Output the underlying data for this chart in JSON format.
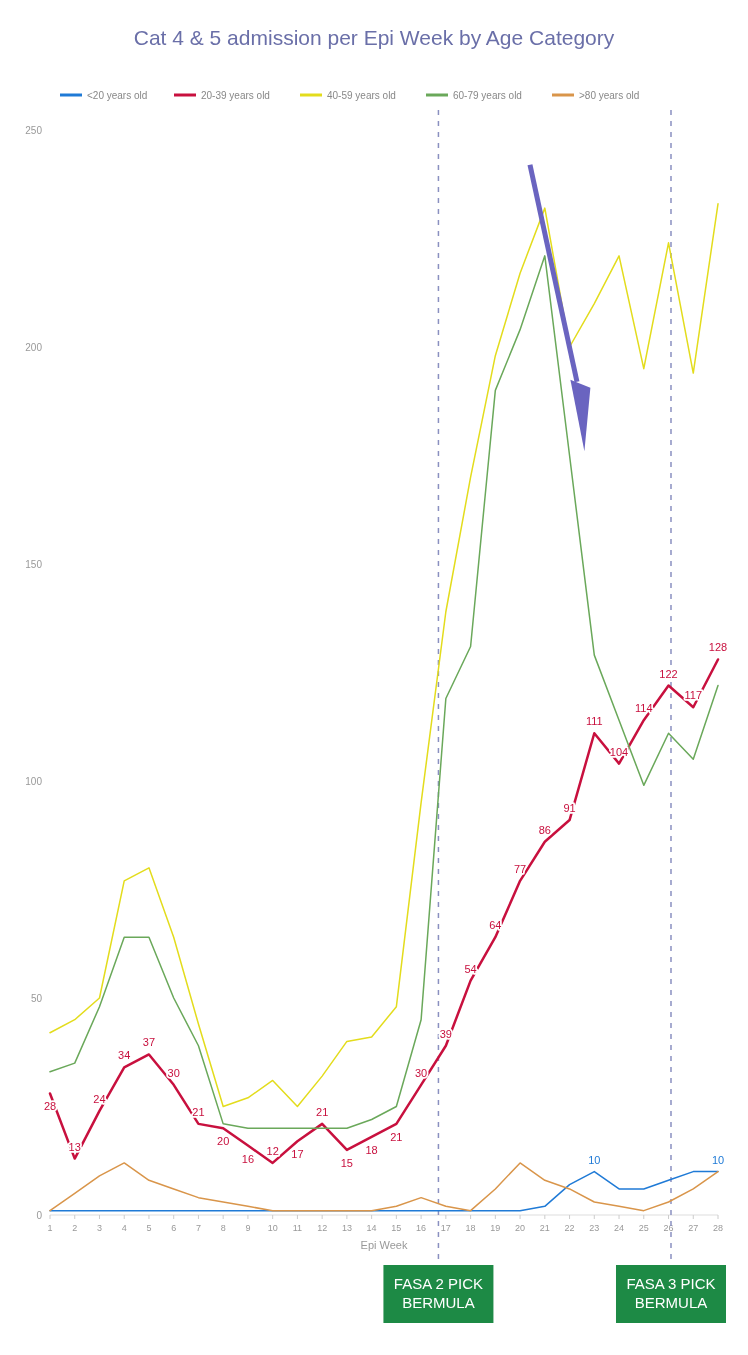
{
  "chart_data": {
    "type": "line",
    "title": "Cat 4 & 5 admission per Epi Week by Age Category",
    "xlabel": "Epi Week",
    "x": [
      1,
      2,
      3,
      4,
      5,
      6,
      7,
      8,
      9,
      10,
      11,
      12,
      13,
      14,
      15,
      16,
      17,
      18,
      19,
      20,
      21,
      22,
      23,
      24,
      25,
      26,
      27,
      28
    ],
    "xlim": [
      1,
      28
    ],
    "xticks": [
      1,
      2,
      3,
      4,
      5,
      6,
      7,
      8,
      9,
      10,
      11,
      12,
      13,
      14,
      15,
      16,
      17,
      18,
      19,
      20,
      21,
      22,
      23,
      24,
      25,
      26,
      27,
      28
    ],
    "ylim": [
      0,
      250
    ],
    "yticks": [
      0,
      50,
      100,
      150,
      200,
      250
    ],
    "legend": "top",
    "series": [
      {
        "name": "<20 years old",
        "color": "#1f7ad6",
        "values": [
          1,
          1,
          1,
          1,
          1,
          1,
          1,
          1,
          1,
          1,
          1,
          1,
          1,
          1,
          1,
          1,
          1,
          1,
          1,
          1,
          2,
          7,
          10,
          6,
          6,
          8,
          10,
          10
        ],
        "value_labels": [
          null,
          null,
          null,
          null,
          null,
          null,
          null,
          null,
          null,
          null,
          null,
          null,
          null,
          null,
          null,
          null,
          null,
          null,
          null,
          null,
          null,
          null,
          "10",
          null,
          null,
          null,
          null,
          "10"
        ]
      },
      {
        "name": "20-39 years old",
        "color": "#c8103e",
        "values": [
          28,
          13,
          24,
          34,
          37,
          30,
          21,
          20,
          16,
          12,
          17,
          21,
          15,
          18,
          21,
          30,
          39,
          54,
          64,
          77,
          86,
          91,
          111,
          104,
          114,
          122,
          117,
          128
        ],
        "value_labels": [
          "28",
          "13",
          "24",
          "34",
          "37",
          "30",
          "21",
          "20",
          "16",
          "12",
          "17",
          "21",
          "15",
          "18",
          "21",
          "30",
          "39",
          "54",
          "64",
          "77",
          "86",
          "91",
          "111",
          "104",
          "114",
          "122",
          "117",
          "128"
        ]
      },
      {
        "name": "40-59 years old",
        "color": "#e3dc1c",
        "values": [
          42,
          45,
          50,
          77,
          80,
          64,
          44,
          25,
          27,
          31,
          25,
          32,
          40,
          41,
          48,
          95,
          139,
          170,
          198,
          217,
          232,
          200,
          210,
          221,
          195,
          224,
          194,
          233
        ]
      },
      {
        "name": "60-79 years old",
        "color": "#6aa85a",
        "values": [
          33,
          35,
          48,
          64,
          64,
          50,
          39,
          21,
          20,
          20,
          20,
          20,
          20,
          22,
          25,
          45,
          119,
          131,
          190,
          204,
          221,
          175,
          129,
          114,
          99,
          111,
          105,
          122
        ]
      },
      {
        "name": ">80 years old",
        "color": "#d9954a",
        "values": [
          1,
          5,
          9,
          12,
          8,
          6,
          4,
          3,
          2,
          1,
          1,
          1,
          1,
          1,
          2,
          4,
          2,
          1,
          6,
          12,
          8,
          6,
          3,
          2,
          1,
          3,
          6,
          10
        ]
      }
    ],
    "ref_lines": [
      {
        "axis": "x",
        "value": 16.7,
        "label": "FASA 2 PICK BERMULA",
        "color": "#8a90c0",
        "line_style": "dashed"
      },
      {
        "axis": "x",
        "value": 26.1,
        "label": "FASA 3 PICK BERMULA",
        "color": "#8a90c0",
        "line_style": "dashed"
      }
    ]
  }
}
